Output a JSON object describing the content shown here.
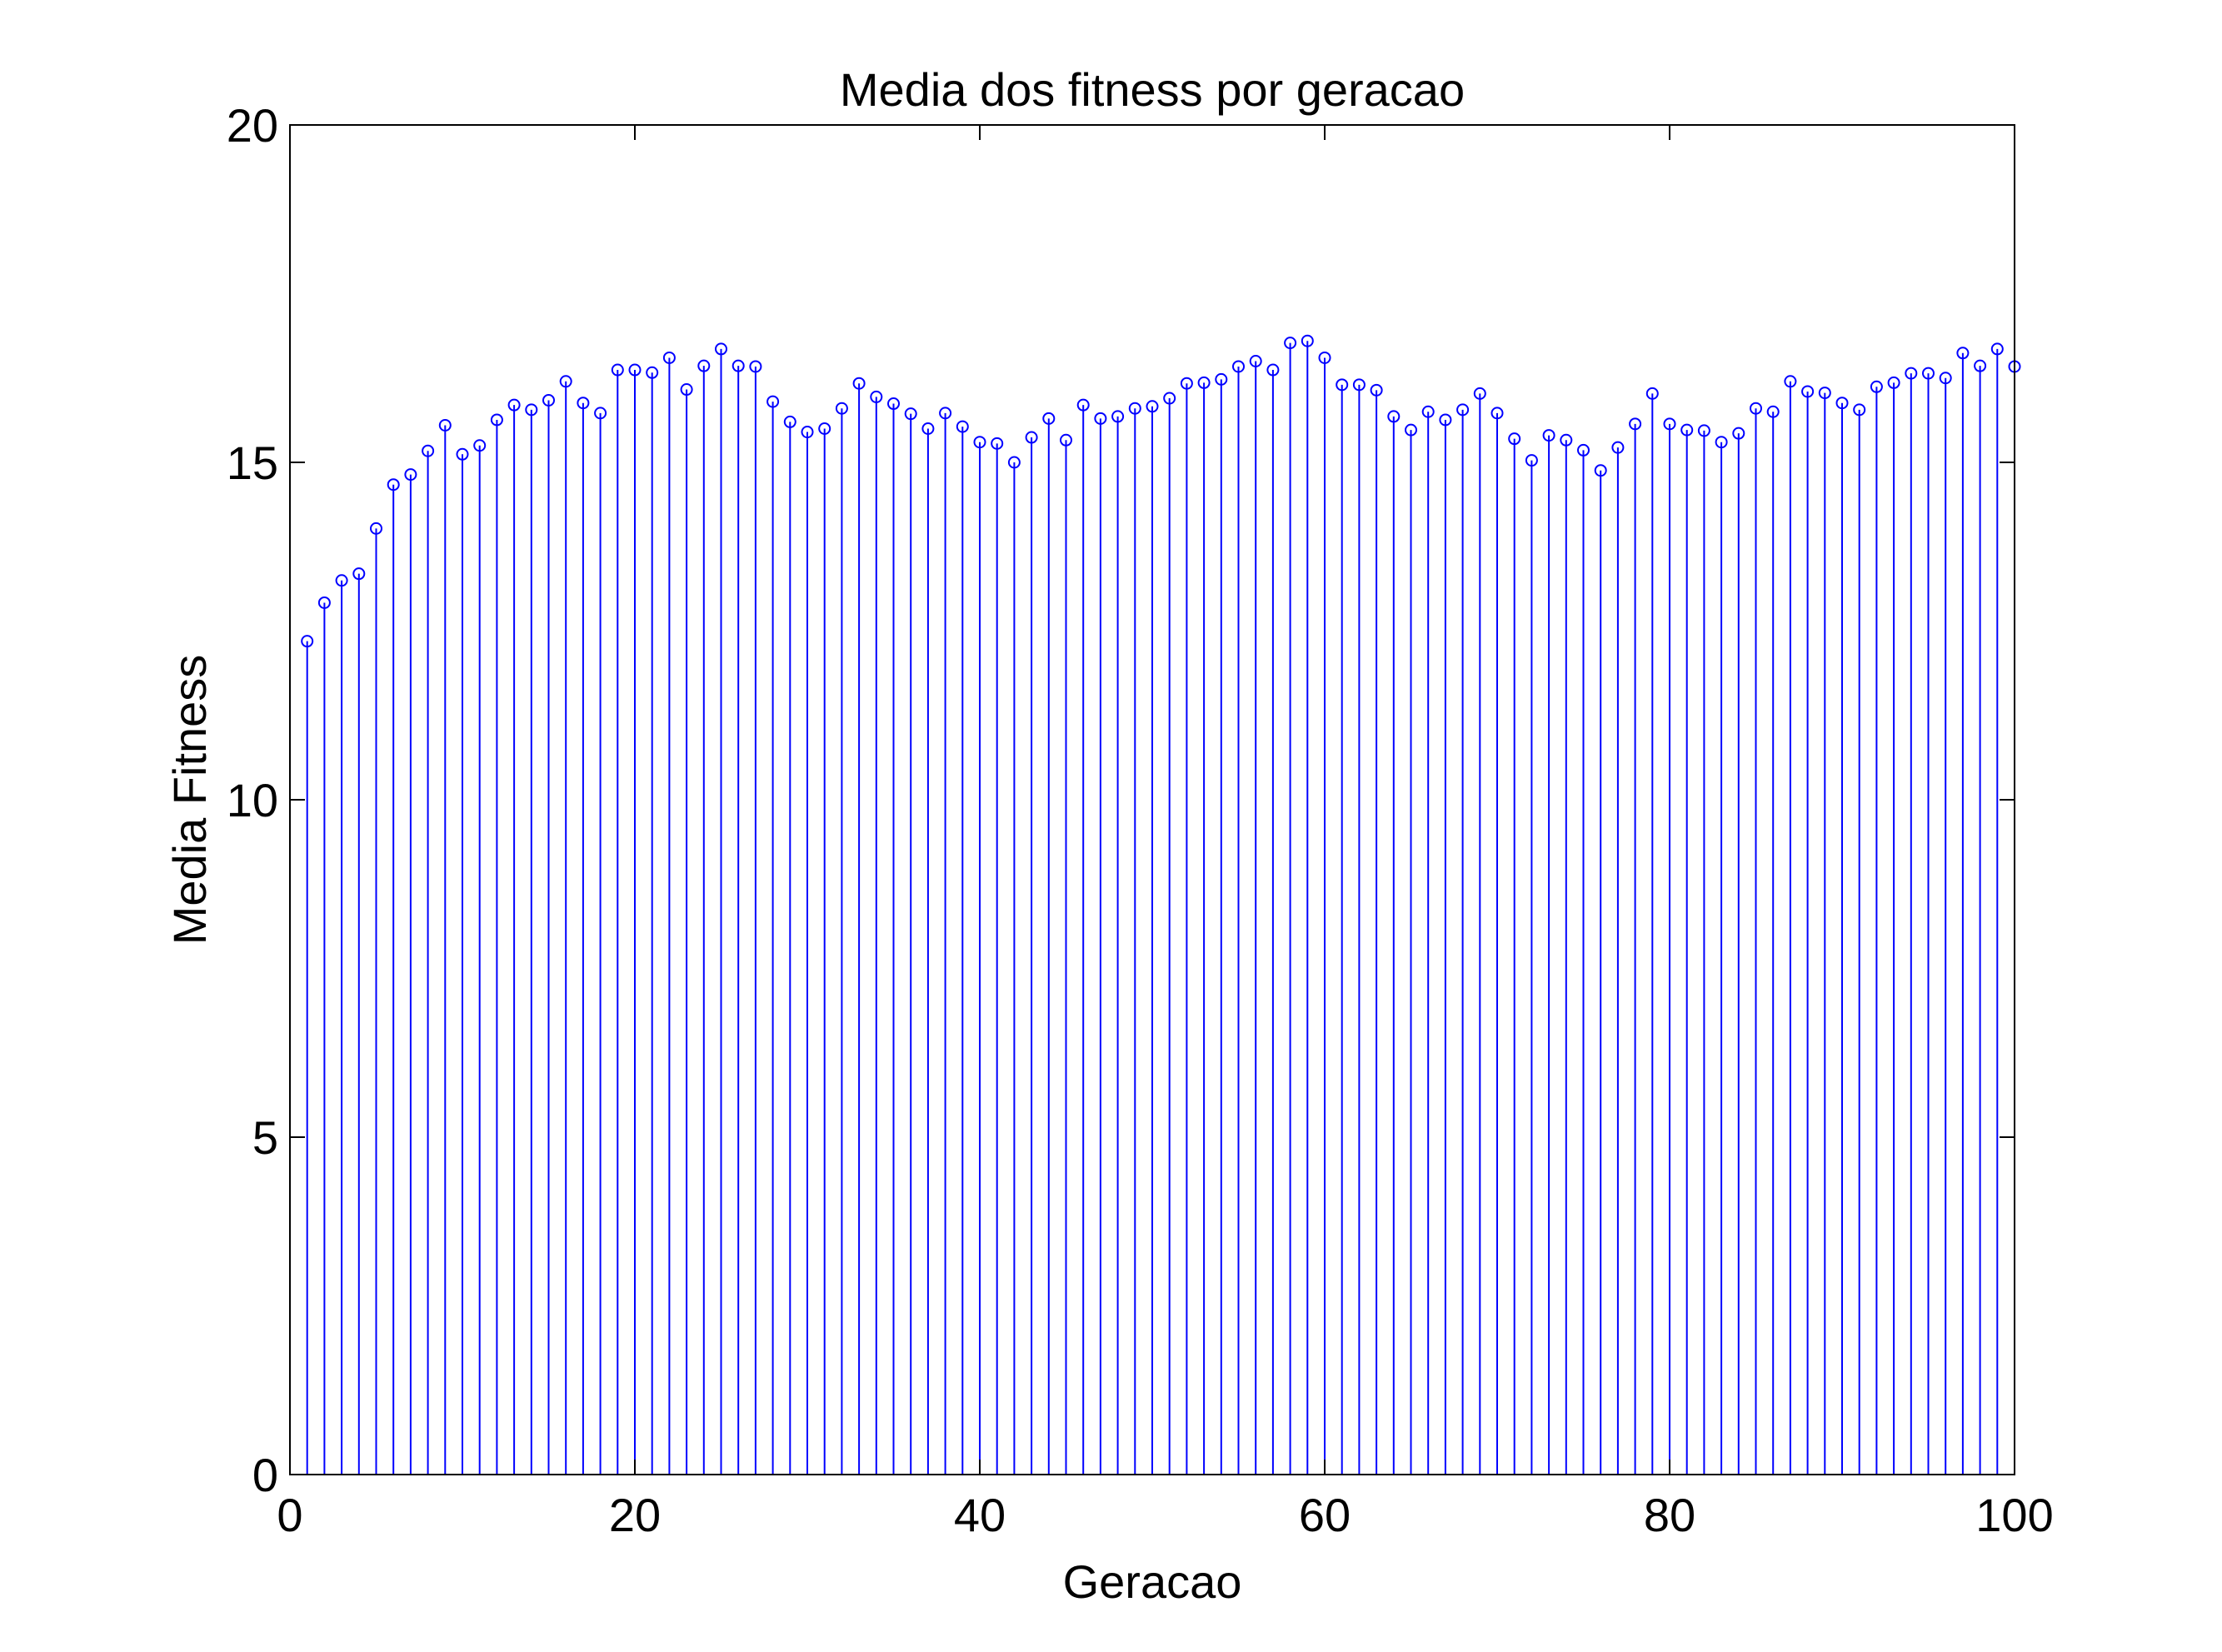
{
  "colors": {
    "series": "#0000ff",
    "axes": "#000000",
    "background": "#ffffff"
  },
  "chart_data": {
    "type": "stem",
    "title": "Media dos fitness por geracao",
    "xlabel": "Geracao",
    "ylabel": "Media Fitness",
    "xlim": [
      0,
      100
    ],
    "ylim": [
      0,
      20
    ],
    "xticks": [
      0,
      20,
      40,
      60,
      80,
      100
    ],
    "yticks": [
      0,
      5,
      10,
      15,
      20
    ],
    "grid": false,
    "marker": "circle",
    "x": [
      1,
      2,
      3,
      4,
      5,
      6,
      7,
      8,
      9,
      10,
      11,
      12,
      13,
      14,
      15,
      16,
      17,
      18,
      19,
      20,
      21,
      22,
      23,
      24,
      25,
      26,
      27,
      28,
      29,
      30,
      31,
      32,
      33,
      34,
      35,
      36,
      37,
      38,
      39,
      40,
      41,
      42,
      43,
      44,
      45,
      46,
      47,
      48,
      49,
      50,
      51,
      52,
      53,
      54,
      55,
      56,
      57,
      58,
      59,
      60,
      61,
      62,
      63,
      64,
      65,
      66,
      67,
      68,
      69,
      70,
      71,
      72,
      73,
      74,
      75,
      76,
      77,
      78,
      79,
      80,
      81,
      82,
      83,
      84,
      85,
      86,
      87,
      88,
      89,
      90,
      91,
      92,
      93,
      94,
      95,
      96,
      97,
      98,
      99,
      100
    ],
    "values": [
      12.35,
      12.92,
      13.25,
      13.35,
      14.02,
      14.67,
      14.82,
      15.17,
      15.55,
      15.12,
      15.25,
      15.63,
      15.85,
      15.78,
      15.92,
      16.2,
      15.88,
      15.73,
      16.37,
      16.37,
      16.33,
      16.55,
      16.08,
      16.43,
      16.68,
      16.43,
      16.42,
      15.9,
      15.6,
      15.45,
      15.5,
      15.8,
      16.17,
      15.97,
      15.87,
      15.72,
      15.5,
      15.73,
      15.53,
      15.3,
      15.28,
      15.0,
      15.37,
      15.65,
      15.33,
      15.85,
      15.65,
      15.68,
      15.8,
      15.83,
      15.95,
      16.17,
      16.18,
      16.23,
      16.42,
      16.5,
      16.37,
      16.77,
      16.8,
      16.55,
      16.15,
      16.15,
      16.07,
      15.68,
      15.48,
      15.75,
      15.63,
      15.78,
      16.02,
      15.73,
      15.35,
      15.03,
      15.4,
      15.33,
      15.18,
      14.88,
      15.22,
      15.57,
      16.02,
      15.57,
      15.48,
      15.47,
      15.3,
      15.43,
      15.8,
      15.75,
      16.2,
      16.05,
      16.03,
      15.88,
      15.78,
      16.12,
      16.18,
      16.32,
      16.32,
      16.25,
      16.62,
      16.43,
      16.68,
      16.42
    ]
  }
}
